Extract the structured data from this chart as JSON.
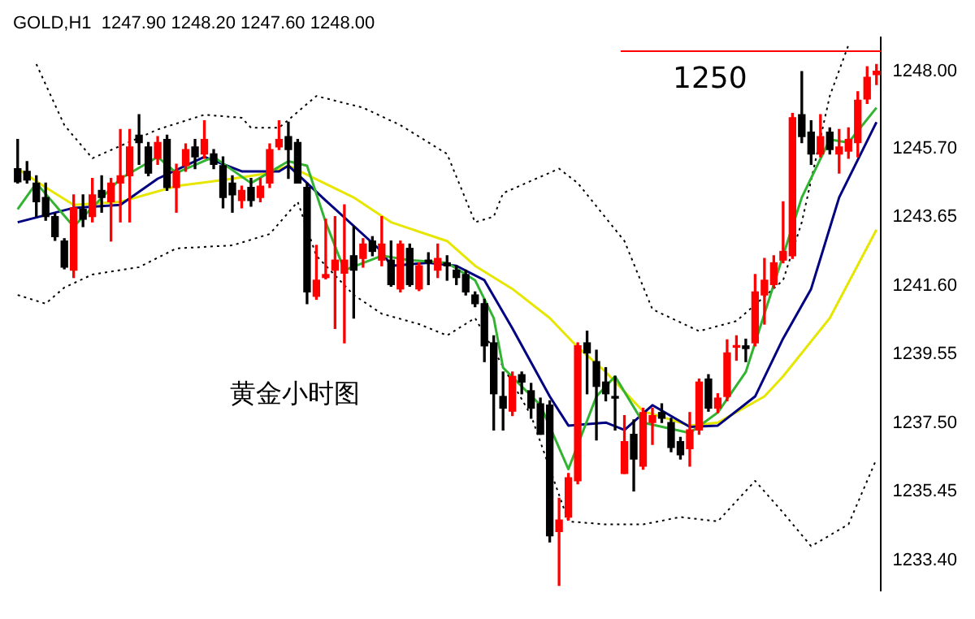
{
  "chart_data": {
    "type": "candlestick",
    "title": "GOLD,H1  1247.90 1248.20 1247.60 1248.00",
    "categories": [
      null,
      null,
      null,
      null,
      null,
      null,
      null,
      null,
      null,
      null,
      null,
      null,
      null,
      null,
      null,
      null,
      null,
      null,
      null,
      null,
      null,
      null,
      null,
      null,
      null,
      null,
      null,
      null,
      null,
      null,
      null,
      null,
      null,
      null,
      null,
      null,
      null,
      null,
      null,
      null,
      null,
      null,
      null,
      null,
      null,
      null,
      null,
      null,
      null,
      null,
      null,
      null,
      null,
      null,
      null,
      null,
      null,
      null,
      null,
      null,
      null,
      null,
      null,
      null,
      null,
      null,
      null,
      null,
      null,
      null,
      null,
      null,
      null,
      null,
      null,
      null,
      null,
      null,
      null,
      null,
      null,
      null,
      null,
      null,
      null,
      null,
      null,
      null,
      null,
      null,
      null,
      null,
      null
    ],
    "ohlc": [
      [
        1245.09,
        1245.96,
        1244.66,
        1244.7
      ],
      [
        1245.01,
        1245.3,
        1244.66,
        1244.75
      ],
      [
        1244.66,
        1244.88,
        1243.66,
        1244.1
      ],
      [
        1244.23,
        1244.66,
        1243.55,
        1243.66
      ],
      [
        1243.66,
        1243.75,
        1242.95,
        1243.06
      ],
      [
        1242.93,
        1243.0,
        1242.1,
        1242.15
      ],
      [
        1242.06,
        1244.31,
        1241.84,
        1243.92
      ],
      [
        1243.88,
        1244.31,
        1243.36,
        1243.58
      ],
      [
        1243.66,
        1244.8,
        1243.5,
        1244.31
      ],
      [
        1244.44,
        1244.88,
        1243.79,
        1244.23
      ],
      [
        1244.1,
        1244.8,
        1242.93,
        1244.66
      ],
      [
        1244.66,
        1246.26,
        1243.5,
        1244.88
      ],
      [
        1244.88,
        1246.26,
        1243.5,
        1245.74
      ],
      [
        1246.09,
        1246.7,
        1245.22,
        1245.87
      ],
      [
        1245.74,
        1245.87,
        1244.88,
        1244.96
      ],
      [
        1245.4,
        1246.05,
        1245.22,
        1245.87
      ],
      [
        1245.96,
        1246.09,
        1244.44,
        1244.53
      ],
      [
        1244.53,
        1245.22,
        1243.79,
        1245.01
      ],
      [
        1245.18,
        1245.83,
        1245.01,
        1245.66
      ],
      [
        1245.74,
        1245.96,
        1245.09,
        1245.44
      ],
      [
        1245.53,
        1246.52,
        1245.4,
        1245.96
      ],
      [
        1245.53,
        1245.66,
        1245.09,
        1245.22
      ],
      [
        1245.18,
        1245.44,
        1243.92,
        1244.23
      ],
      [
        1244.66,
        1244.88,
        1243.79,
        1244.31
      ],
      [
        1244.14,
        1244.57,
        1243.92,
        1244.44
      ],
      [
        1244.53,
        1244.8,
        1243.97,
        1244.14
      ],
      [
        1244.23,
        1244.8,
        1244.1,
        1244.57
      ],
      [
        1244.66,
        1245.83,
        1244.53,
        1245.66
      ],
      [
        1245.74,
        1246.52,
        1245.66,
        1245.96
      ],
      [
        1246.05,
        1246.48,
        1244.8,
        1245.66
      ],
      [
        1245.87,
        1245.96,
        1244.66,
        1244.66
      ],
      [
        1244.53,
        1244.66,
        1241.06,
        1241.41
      ],
      [
        1241.28,
        1242.8,
        1241.19,
        1241.76
      ],
      [
        1241.84,
        1243.58,
        1241.8,
        1241.93
      ],
      [
        1242.06,
        1243.66,
        1240.32,
        1242.36
      ],
      [
        1241.97,
        1244.01,
        1239.89,
        1242.36
      ],
      [
        1242.49,
        1243.36,
        1240.63,
        1242.06
      ],
      [
        1242.41,
        1243.0,
        1242.15,
        1242.84
      ],
      [
        1242.93,
        1243.06,
        1242.49,
        1242.62
      ],
      [
        1242.36,
        1243.66,
        1242.19,
        1242.84
      ],
      [
        1242.36,
        1242.93,
        1241.58,
        1241.63
      ],
      [
        1241.5,
        1242.93,
        1241.41,
        1242.84
      ],
      [
        1242.71,
        1242.84,
        1241.58,
        1241.63
      ],
      [
        1241.5,
        1242.28,
        1241.45,
        1242.19
      ],
      [
        1242.36,
        1242.58,
        1241.63,
        1242.28
      ],
      [
        1242.06,
        1242.84,
        1241.84,
        1242.41
      ],
      [
        1242.28,
        1242.49,
        1241.76,
        1242.19
      ],
      [
        1242.06,
        1242.19,
        1241.63,
        1241.84
      ],
      [
        1241.93,
        1242.06,
        1241.32,
        1241.41
      ],
      [
        1241.32,
        1241.41,
        1240.97,
        1241.06
      ],
      [
        1241.06,
        1241.19,
        1239.33,
        1239.8
      ],
      [
        1239.89,
        1240.1,
        1237.29,
        1238.37
      ],
      [
        1238.29,
        1239.02,
        1237.29,
        1237.94
      ],
      [
        1237.85,
        1239.02,
        1237.72,
        1238.89
      ],
      [
        1238.94,
        1239.02,
        1238.37,
        1238.72
      ],
      [
        1238.46,
        1238.68,
        1237.64,
        1237.94
      ],
      [
        1238.07,
        1238.24,
        1237.16,
        1237.16
      ],
      [
        1238.03,
        1238.16,
        1233.95,
        1234.13
      ],
      [
        1234.26,
        1235.25,
        1232.65,
        1234.6
      ],
      [
        1234.69,
        1235.99,
        1234.6,
        1235.86
      ],
      [
        1235.77,
        1239.89,
        1235.68,
        1239.8
      ],
      [
        1239.89,
        1240.24,
        1238.37,
        1239.59
      ],
      [
        1239.33,
        1239.67,
        1236.99,
        1238.59
      ],
      [
        1238.72,
        1239.15,
        1238.16,
        1238.37
      ],
      [
        1238.29,
        1238.89,
        1237.29,
        1238.24
      ],
      [
        1235.99,
        1237.72,
        1235.99,
        1236.94
      ],
      [
        1237.16,
        1237.59,
        1235.47,
        1236.42
      ],
      [
        1236.21,
        1237.94,
        1236.12,
        1237.81
      ],
      [
        1237.51,
        1237.94,
        1236.86,
        1237.72
      ],
      [
        1237.81,
        1238.07,
        1237.51,
        1237.64
      ],
      [
        1237.51,
        1237.64,
        1236.64,
        1236.77
      ],
      [
        1236.94,
        1237.07,
        1236.42,
        1236.55
      ],
      [
        1236.73,
        1237.81,
        1236.21,
        1237.29
      ],
      [
        1237.29,
        1238.81,
        1237.16,
        1238.72
      ],
      [
        1238.81,
        1238.94,
        1237.85,
        1237.94
      ],
      [
        1237.94,
        1238.37,
        1237.81,
        1238.24
      ],
      [
        1238.29,
        1239.98,
        1238.16,
        1239.59
      ],
      [
        1239.76,
        1240.1,
        1239.37,
        1239.8
      ],
      [
        1239.8,
        1240.0,
        1239.33,
        1239.72
      ],
      [
        1239.89,
        1241.93,
        1239.8,
        1241.41
      ],
      [
        1241.32,
        1242.41,
        1240.45,
        1241.76
      ],
      [
        1241.63,
        1242.49,
        1241.54,
        1242.28
      ],
      [
        1242.36,
        1244.1,
        1242.28,
        1242.62
      ],
      [
        1242.49,
        1246.74,
        1242.41,
        1246.61
      ],
      [
        1246.7,
        1247.99,
        1245.87,
        1246.05
      ],
      [
        1246.18,
        1246.52,
        1245.22,
        1245.53
      ],
      [
        1245.53,
        1246.7,
        1245.44,
        1246.05
      ],
      [
        1246.18,
        1246.31,
        1245.53,
        1245.66
      ],
      [
        1245.53,
        1246.26,
        1244.96,
        1245.74
      ],
      [
        1245.61,
        1246.31,
        1245.4,
        1245.96
      ],
      [
        1245.87,
        1247.39,
        1245.44,
        1247.13
      ],
      [
        1247.17,
        1248.13,
        1247.04,
        1247.82
      ],
      [
        1247.9,
        1248.2,
        1247.6,
        1248.0
      ]
    ],
    "colors": [
      "#000000",
      "#000000",
      "#000000",
      "#000000",
      "#000000",
      "#000000",
      "#ff0000",
      "#000000",
      "#ff0000",
      "#000000",
      "#ff0000",
      "#ff0000",
      "#ff0000",
      "#000000",
      "#000000",
      "#ff0000",
      "#000000",
      "#ff0000",
      "#ff0000",
      "#000000",
      "#ff0000",
      "#000000",
      "#000000",
      "#000000",
      "#ff0000",
      "#000000",
      "#ff0000",
      "#ff0000",
      "#ff0000",
      "#000000",
      "#000000",
      "#000000",
      "#ff0000",
      "#ff0000",
      "#ff0000",
      "#ff0000",
      "#000000",
      "#ff0000",
      "#000000",
      "#ff0000",
      "#000000",
      "#ff0000",
      "#000000",
      "#ff0000",
      "#000000",
      "#ff0000",
      "#000000",
      "#000000",
      "#000000",
      "#000000",
      "#000000",
      "#000000",
      "#000000",
      "#ff0000",
      "#000000",
      "#000000",
      "#000000",
      "#000000",
      "#ff0000",
      "#ff0000",
      "#ff0000",
      "#000000",
      "#000000",
      "#000000",
      "#000000",
      "#ff0000",
      "#000000",
      "#ff0000",
      "#ff0000",
      "#000000",
      "#000000",
      "#000000",
      "#ff0000",
      "#ff0000",
      "#000000",
      "#ff0000",
      "#ff0000",
      "#ff0000",
      "#000000",
      "#ff0000",
      "#ff0000",
      "#ff0000",
      "#ff0000",
      "#ff0000",
      "#000000",
      "#000000",
      "#ff0000",
      "#000000",
      "#ff0000",
      "#ff0000",
      "#ff0000",
      "#ff0000",
      "#ff0000"
    ],
    "series": [
      {
        "type": "line",
        "color": "#32b432",
        "line_style": "solid",
        "values": [
          1243.88,
          null,
          1244.66,
          null,
          null,
          null,
          1243.36,
          null,
          null,
          null,
          null,
          1244.79,
          null,
          null,
          null,
          1245.44,
          null,
          1244.96,
          null,
          null,
          null,
          1245.44,
          null,
          null,
          null,
          1244.66,
          null,
          null,
          null,
          1245.31,
          null,
          1245.18,
          null,
          1243.49,
          null,
          1242.06,
          null,
          null,
          null,
          1242.49,
          null,
          null,
          1242.36,
          null,
          null,
          null,
          1242.28,
          null,
          null,
          1241.76,
          null,
          1240.63,
          1239.15,
          null,
          null,
          null,
          1238.03,
          null,
          null,
          1236.12,
          null,
          null,
          1238.29,
          null,
          1238.89,
          null,
          null,
          1237.51,
          null,
          null,
          null,
          null,
          1237.2,
          null,
          null,
          1237.81,
          null,
          null,
          1239.02,
          null,
          null,
          1241.63,
          null,
          null,
          1244.23,
          null,
          null,
          1245.96,
          null,
          1245.87,
          null,
          null,
          1246.91
        ]
      },
      {
        "type": "line",
        "color": "#000080",
        "line_style": "solid",
        "values": [
          1243.49,
          null,
          null,
          null,
          null,
          null,
          1243.92,
          null,
          null,
          null,
          null,
          1244.01,
          null,
          null,
          null,
          1244.79,
          null,
          null,
          null,
          null,
          1245.44,
          null,
          null,
          null,
          1245.01,
          null,
          null,
          null,
          1245.01,
          1245.18,
          null,
          null,
          null,
          1244.14,
          null,
          null,
          null,
          null,
          null,
          1242.62,
          1242.19,
          null,
          null,
          null,
          1242.28,
          null,
          null,
          1242.19,
          null,
          null,
          1241.76,
          null,
          null,
          1240.32,
          null,
          null,
          null,
          1238.29,
          null,
          1237.42,
          null,
          null,
          null,
          1237.51,
          null,
          1237.29,
          null,
          null,
          1238.03,
          null,
          null,
          null,
          1237.38,
          null,
          null,
          1237.42,
          null,
          null,
          null,
          1238.29,
          null,
          null,
          1240.02,
          null,
          null,
          1241.5,
          null,
          null,
          1244.23,
          null,
          null,
          null,
          1246.48
        ]
      },
      {
        "type": "line",
        "color": "#e6e600",
        "line_style": "solid",
        "values": [
          1245.09,
          null,
          null,
          1244.53,
          null,
          null,
          1244.01,
          null,
          null,
          null,
          null,
          1244.1,
          null,
          null,
          null,
          null,
          null,
          1244.57,
          null,
          null,
          null,
          null,
          null,
          1244.79,
          null,
          null,
          null,
          1244.96,
          null,
          1245.18,
          null,
          null,
          null,
          null,
          null,
          null,
          1244.23,
          null,
          null,
          null,
          1243.49,
          null,
          null,
          null,
          null,
          null,
          1242.93,
          null,
          null,
          1242.19,
          null,
          null,
          null,
          1241.5,
          null,
          null,
          null,
          1240.63,
          null,
          null,
          1239.76,
          null,
          null,
          1239.02,
          null,
          null,
          null,
          1237.85,
          null,
          null,
          null,
          null,
          1237.42,
          null,
          null,
          1237.51,
          null,
          null,
          null,
          null,
          1238.29,
          null,
          1238.89,
          null,
          null,
          null,
          null,
          1240.63,
          null,
          null,
          null,
          null,
          1243.27
        ]
      },
      {
        "type": "line",
        "color": "#000000",
        "line_style": "dotted",
        "values": [
          null,
          null,
          1248.21,
          null,
          null,
          1246.39,
          null,
          null,
          1245.4,
          null,
          null,
          null,
          null,
          null,
          null,
          1246.26,
          null,
          null,
          null,
          null,
          1246.7,
          null,
          null,
          null,
          1246.61,
          1246.31,
          null,
          null,
          1246.31,
          null,
          null,
          null,
          1247.26,
          null,
          null,
          null,
          null,
          1246.91,
          null,
          null,
          null,
          1246.39,
          null,
          null,
          null,
          null,
          1245.53,
          null,
          null,
          1243.49,
          null,
          1243.66,
          1244.36,
          null,
          null,
          null,
          null,
          null,
          1245.09,
          null,
          1244.66,
          null,
          null,
          null,
          null,
          1242.93,
          null,
          null,
          1240.89,
          null,
          null,
          null,
          null,
          1240.24,
          null,
          null,
          null,
          1240.54,
          null,
          null,
          null,
          null,
          1241.76,
          null,
          1243.49,
          null,
          null,
          1247.26,
          null,
          1248.78,
          null,
          null,
          null
        ]
      },
      {
        "type": "line",
        "color": "#000000",
        "line_style": "dotted",
        "values": [
          1241.32,
          null,
          null,
          1241.06,
          null,
          1241.54,
          null,
          null,
          1241.93,
          null,
          null,
          null,
          null,
          1242.15,
          null,
          null,
          null,
          1242.71,
          null,
          null,
          null,
          null,
          null,
          1242.8,
          null,
          null,
          null,
          1243.14,
          null,
          null,
          1244.1,
          null,
          1242.49,
          null,
          null,
          null,
          1241.32,
          null,
          null,
          1240.76,
          null,
          null,
          null,
          1240.45,
          null,
          null,
          1240.11,
          null,
          null,
          1240.63,
          null,
          1239.67,
          null,
          null,
          null,
          1237.72,
          null,
          null,
          null,
          1234.56,
          null,
          null,
          null,
          1234.47,
          null,
          null,
          null,
          1234.47,
          null,
          null,
          null,
          1234.69,
          null,
          null,
          null,
          1234.56,
          null,
          null,
          null,
          1235.77,
          null,
          null,
          1234.82,
          null,
          null,
          1233.82,
          null,
          null,
          null,
          1234.47,
          null,
          null,
          1236.42
        ]
      }
    ],
    "ylim": [
      1232.5,
      1249.0
    ],
    "yticks": [
      {
        "value": 1233.4,
        "label": "1233.40"
      },
      {
        "value": 1235.45,
        "label": "1235.45"
      },
      {
        "value": 1237.5,
        "label": "1237.50"
      },
      {
        "value": 1239.55,
        "label": "1239.55"
      },
      {
        "value": 1241.6,
        "label": "1241.60"
      },
      {
        "value": 1243.65,
        "label": "1243.65"
      },
      {
        "value": 1245.7,
        "label": "1245.70"
      },
      {
        "value": 1248.0,
        "label": "1248.00"
      }
    ],
    "ref_lines": [
      {
        "axis": "y",
        "value": 1248.6,
        "color": "#ff0000"
      }
    ],
    "annotations": [
      "1250",
      "黄金小时图"
    ],
    "tick_labels": "y",
    "grid": false,
    "legend": false
  }
}
